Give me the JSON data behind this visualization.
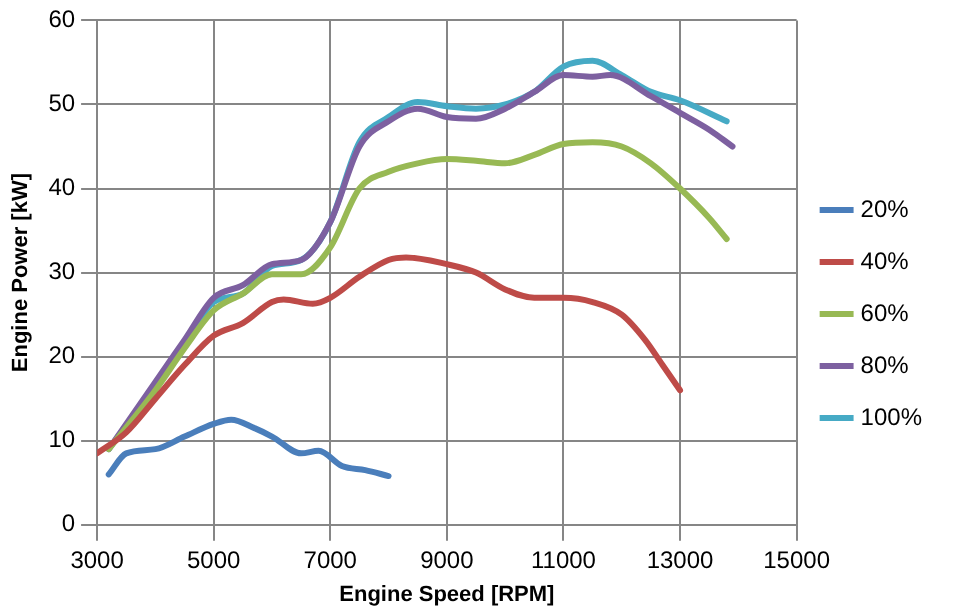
{
  "chart_data": {
    "type": "line",
    "xlabel": "Engine Speed [RPM]",
    "ylabel": "Engine Power [kW]",
    "xlim": [
      3000,
      15000
    ],
    "xticks": [
      3000,
      5000,
      7000,
      9000,
      11000,
      13000,
      15000
    ],
    "ylim": [
      0,
      60
    ],
    "yticks": [
      0,
      10,
      20,
      30,
      40,
      50,
      60
    ],
    "grid": true,
    "legend": "right",
    "marker": "none",
    "line_style": "solid",
    "series": [
      {
        "name": "20%",
        "color": "#4a7ebb",
        "x": [
          3200,
          3500,
          4000,
          4500,
          5000,
          5300,
          5700,
          6000,
          6500,
          6800,
          7200,
          7600,
          8000
        ],
        "values": [
          6,
          8.5,
          9,
          10.5,
          12,
          12.5,
          11.5,
          10.5,
          8.5,
          8.8,
          7,
          6.5,
          5.8
        ]
      },
      {
        "name": "40%",
        "color": "#be4b48",
        "x": [
          3000,
          3500,
          4000,
          4500,
          5000,
          5500,
          6000,
          6200,
          6700,
          7000,
          7500,
          8000,
          8300,
          9000,
          9500,
          10000,
          10500,
          11000,
          11500,
          12000,
          12400,
          12700,
          13000
        ],
        "values": [
          8.5,
          11,
          15,
          19,
          22.5,
          24,
          26.5,
          26.8,
          26.3,
          27,
          29.5,
          31.5,
          31.8,
          31,
          30,
          28,
          27,
          27,
          26.5,
          25,
          22,
          19,
          16
        ]
      },
      {
        "name": "60%",
        "color": "#98b954",
        "x": [
          3200,
          4000,
          4500,
          5000,
          5500,
          6000,
          6500,
          7000,
          7500,
          8000,
          8500,
          9000,
          9500,
          10000,
          10500,
          11000,
          11500,
          12000,
          12500,
          13000,
          13500,
          13800
        ],
        "values": [
          9,
          16,
          21,
          25.5,
          27.5,
          29.8,
          29.8,
          33,
          40,
          42,
          43,
          43.5,
          43.3,
          43,
          44,
          45.3,
          45.5,
          45,
          43,
          40,
          36.5,
          34
        ]
      },
      {
        "name": "80%",
        "color": "#7d60a0",
        "x": [
          3200,
          4000,
          4500,
          5000,
          5500,
          6000,
          6500,
          7000,
          7500,
          8000,
          8500,
          9000,
          9500,
          10000,
          10500,
          11000,
          11500,
          11800,
          12500,
          13000,
          13500,
          13900
        ],
        "values": [
          9,
          17,
          22,
          27,
          28.5,
          31,
          31.5,
          36,
          45,
          48,
          49.5,
          48.5,
          48.3,
          49.5,
          51.5,
          53.5,
          53.3,
          53.5,
          51,
          49,
          47,
          45
        ]
      },
      {
        "name": "100%",
        "color": "#46aac5",
        "x": [
          3200,
          4000,
          4500,
          5000,
          5500,
          6000,
          6500,
          7000,
          7500,
          8000,
          8500,
          9000,
          9500,
          10000,
          10500,
          11000,
          11500,
          12000,
          12500,
          13000,
          13800
        ],
        "values": [
          9,
          16.5,
          21.5,
          26.5,
          27.5,
          30.8,
          31.5,
          36,
          45.5,
          48.5,
          50.3,
          49.8,
          49.5,
          50,
          51.5,
          54.5,
          55.2,
          53.5,
          51.5,
          50.5,
          48
        ]
      }
    ]
  }
}
